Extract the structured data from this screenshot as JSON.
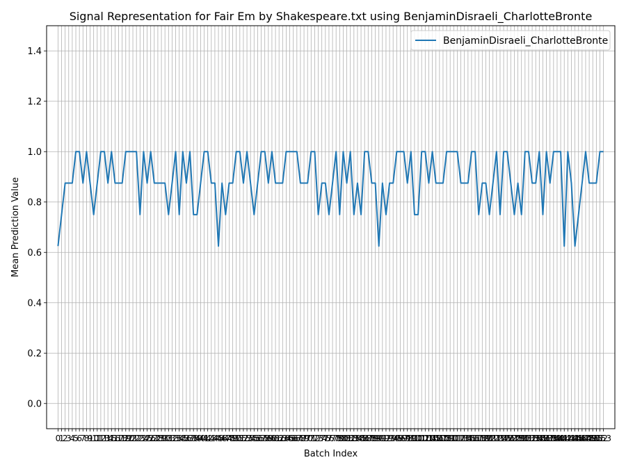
{
  "chart_data": {
    "type": "line",
    "title": "Signal Representation for Fair Em by Shakespeare.txt using BenjaminDisraeli_CharlotteBronte",
    "xlabel": "Batch Index",
    "ylabel": "Mean Prediction Value",
    "xlim": [
      -3.2,
      156.2
    ],
    "ylim": [
      -0.1,
      1.5
    ],
    "yticks": [
      0.0,
      0.2,
      0.4,
      0.6,
      0.8,
      1.0,
      1.2,
      1.4
    ],
    "ytick_labels": [
      "0.0",
      "0.2",
      "0.4",
      "0.6",
      "0.8",
      "1.0",
      "1.2",
      "1.4"
    ],
    "grid": true,
    "legend_position": "top-right",
    "series": [
      {
        "name": "BenjaminDisraeli_CharlotteBronte",
        "color": "#1f77b4",
        "x": [
          0,
          1,
          2,
          3,
          4,
          5,
          6,
          7,
          8,
          9,
          10,
          11,
          12,
          13,
          14,
          15,
          16,
          17,
          18,
          19,
          20,
          21,
          22,
          23,
          24,
          25,
          26,
          27,
          28,
          29,
          30,
          31,
          32,
          33,
          34,
          35,
          36,
          37,
          38,
          39,
          40,
          41,
          42,
          43,
          44,
          45,
          46,
          47,
          48,
          49,
          50,
          51,
          52,
          53,
          54,
          55,
          56,
          57,
          58,
          59,
          60,
          61,
          62,
          63,
          64,
          65,
          66,
          67,
          68,
          69,
          70,
          71,
          72,
          73,
          74,
          75,
          76,
          77,
          78,
          79,
          80,
          81,
          82,
          83,
          84,
          85,
          86,
          87,
          88,
          89,
          90,
          91,
          92,
          93,
          94,
          95,
          96,
          97,
          98,
          99,
          100,
          101,
          102,
          103,
          104,
          105,
          106,
          107,
          108,
          109,
          110,
          111,
          112,
          113,
          114,
          115,
          116,
          117,
          118,
          119,
          120,
          121,
          122,
          123,
          124,
          125,
          126,
          127,
          128,
          129,
          130,
          131,
          132,
          133,
          134,
          135,
          136,
          137,
          138,
          139,
          140,
          141,
          142,
          143,
          144,
          145,
          146,
          147,
          148,
          149,
          150,
          151,
          152,
          153
        ],
        "values": [
          0.625,
          0.75,
          0.875,
          0.875,
          0.875,
          1.0,
          1.0,
          0.875,
          1.0,
          0.875,
          0.75,
          0.875,
          1.0,
          1.0,
          0.875,
          1.0,
          0.875,
          0.875,
          0.875,
          1.0,
          1.0,
          1.0,
          1.0,
          0.75,
          1.0,
          0.875,
          1.0,
          0.875,
          0.875,
          0.875,
          0.875,
          0.75,
          0.875,
          1.0,
          0.75,
          1.0,
          0.875,
          1.0,
          0.75,
          0.75,
          0.875,
          1.0,
          1.0,
          0.875,
          0.875,
          0.625,
          0.875,
          0.75,
          0.875,
          0.875,
          1.0,
          1.0,
          0.875,
          1.0,
          0.875,
          0.75,
          0.875,
          1.0,
          1.0,
          0.875,
          1.0,
          0.875,
          0.875,
          0.875,
          1.0,
          1.0,
          1.0,
          1.0,
          0.875,
          0.875,
          0.875,
          1.0,
          1.0,
          0.75,
          0.875,
          0.875,
          0.75,
          0.875,
          1.0,
          0.75,
          1.0,
          0.875,
          1.0,
          0.75,
          0.875,
          0.75,
          1.0,
          1.0,
          0.875,
          0.875,
          0.625,
          0.875,
          0.75,
          0.875,
          0.875,
          1.0,
          1.0,
          1.0,
          0.875,
          1.0,
          0.75,
          0.75,
          1.0,
          1.0,
          0.875,
          1.0,
          0.875,
          0.875,
          0.875,
          1.0,
          1.0,
          1.0,
          1.0,
          0.875,
          0.875,
          0.875,
          1.0,
          1.0,
          0.75,
          0.875,
          0.875,
          0.75,
          0.875,
          1.0,
          0.75,
          1.0,
          1.0,
          0.875,
          0.75,
          0.875,
          0.75,
          1.0,
          1.0,
          0.875,
          0.875,
          1.0,
          0.75,
          1.0,
          0.875,
          1.0,
          1.0,
          1.0,
          0.625,
          1.0,
          0.875,
          0.625,
          0.75,
          0.875,
          1.0,
          0.875,
          0.875,
          0.875,
          1.0,
          1.0
        ]
      }
    ]
  }
}
